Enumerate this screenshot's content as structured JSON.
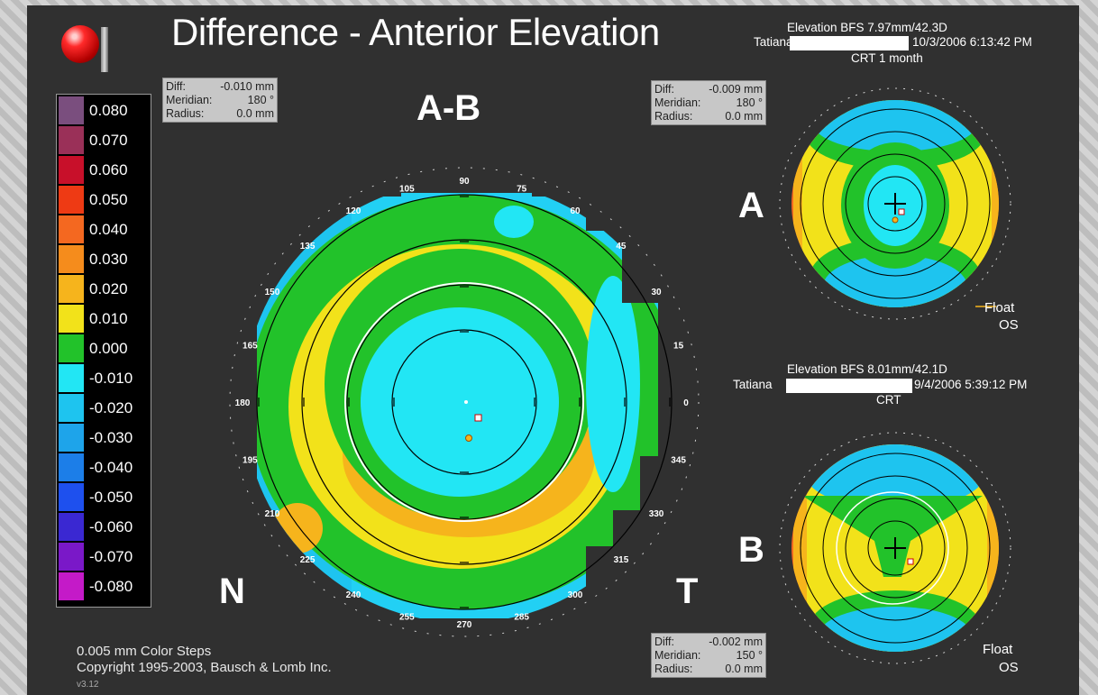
{
  "title": "Difference - Anterior Elevation",
  "scale": {
    "entries": [
      {
        "value": "0.080",
        "color": "#7a4e7e"
      },
      {
        "value": "0.070",
        "color": "#9a3058"
      },
      {
        "value": "0.060",
        "color": "#c8102a"
      },
      {
        "value": "0.050",
        "color": "#ee3a14"
      },
      {
        "value": "0.040",
        "color": "#f46820"
      },
      {
        "value": "0.030",
        "color": "#f58c1c"
      },
      {
        "value": "0.020",
        "color": "#f6b41c"
      },
      {
        "value": "0.010",
        "color": "#f2e21a"
      },
      {
        "value": "0.000",
        "color": "#22c22a"
      },
      {
        "value": "-0.010",
        "color": "#22e6f4"
      },
      {
        "value": "-0.020",
        "color": "#1ec4ef"
      },
      {
        "value": "-0.030",
        "color": "#1ea4ea"
      },
      {
        "value": "-0.040",
        "color": "#1c7ee8"
      },
      {
        "value": "-0.050",
        "color": "#1e50ee"
      },
      {
        "value": "-0.060",
        "color": "#3a28d2"
      },
      {
        "value": "-0.070",
        "color": "#7a18c8"
      },
      {
        "value": "-0.080",
        "color": "#c41ac8"
      }
    ]
  },
  "main": {
    "label": "A-B",
    "info": {
      "diff_label": "Diff:",
      "diff": "-0.010 mm",
      "meridian_label": "Meridian:",
      "meridian": "180 °",
      "radius_label": "Radius:",
      "radius": "0.0 mm"
    },
    "nasal": "N",
    "temporal": "T",
    "angles": [
      "0",
      "15",
      "30",
      "45",
      "60",
      "75",
      "90",
      "105",
      "120",
      "135",
      "150",
      "165",
      "180",
      "195",
      "210",
      "225",
      "240",
      "255",
      "270",
      "285",
      "300",
      "315",
      "330",
      "345"
    ]
  },
  "map_a": {
    "label": "A",
    "header1": "Elevation BFS   7.97mm/42.3D",
    "patient": "Tatiana",
    "datetime": "10/3/2006 6:13:42 PM",
    "visit": "CRT 1 month",
    "info": {
      "diff_label": "Diff:",
      "diff": "-0.009 mm",
      "meridian_label": "Meridian:",
      "meridian": "180 °",
      "radius_label": "Radius:",
      "radius": "0.0 mm"
    },
    "float": "Float",
    "eye": "OS"
  },
  "map_b": {
    "label": "B",
    "header1": "Elevation BFS   8.01mm/42.1D",
    "patient": "Tatiana",
    "datetime": "9/4/2006 5:39:12 PM",
    "visit": "CRT",
    "info": {
      "diff_label": "Diff:",
      "diff": "-0.002 mm",
      "meridian_label": "Meridian:",
      "meridian": "150 °",
      "radius_label": "Radius:",
      "radius": "0.0 mm"
    },
    "float": "Float",
    "eye": "OS"
  },
  "footer": {
    "steps": "0.005 mm Color Steps",
    "copyright": "Copyright 1995-2003, Bausch & Lomb Inc.",
    "version": "v3.12"
  }
}
